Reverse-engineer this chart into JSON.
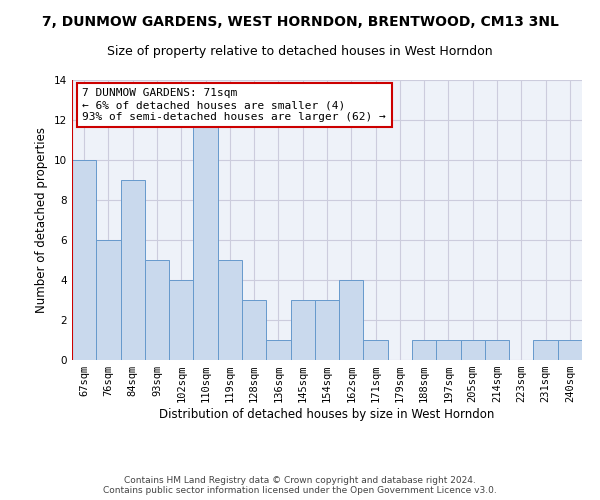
{
  "title": "7, DUNMOW GARDENS, WEST HORNDON, BRENTWOOD, CM13 3NL",
  "subtitle": "Size of property relative to detached houses in West Horndon",
  "xlabel": "Distribution of detached houses by size in West Horndon",
  "ylabel": "Number of detached properties",
  "categories": [
    "67sqm",
    "76sqm",
    "84sqm",
    "93sqm",
    "102sqm",
    "110sqm",
    "119sqm",
    "128sqm",
    "136sqm",
    "145sqm",
    "154sqm",
    "162sqm",
    "171sqm",
    "179sqm",
    "188sqm",
    "197sqm",
    "205sqm",
    "214sqm",
    "223sqm",
    "231sqm",
    "240sqm"
  ],
  "values": [
    10,
    6,
    9,
    5,
    4,
    12,
    5,
    3,
    1,
    3,
    3,
    4,
    1,
    0,
    1,
    1,
    1,
    1,
    0,
    1,
    1
  ],
  "bar_color": "#c9d9ed",
  "bar_edge_color": "#6699cc",
  "highlight_line_color": "#cc0000",
  "annotation_text": "7 DUNMOW GARDENS: 71sqm\n← 6% of detached houses are smaller (4)\n93% of semi-detached houses are larger (62) →",
  "annotation_box_color": "#ffffff",
  "annotation_box_edge_color": "#cc0000",
  "ylim": [
    0,
    14
  ],
  "yticks": [
    0,
    2,
    4,
    6,
    8,
    10,
    12,
    14
  ],
  "footer_text": "Contains HM Land Registry data © Crown copyright and database right 2024.\nContains public sector information licensed under the Open Government Licence v3.0.",
  "grid_color": "#ccccdd",
  "bg_color": "#eef2f9",
  "title_fontsize": 10,
  "subtitle_fontsize": 9,
  "axis_label_fontsize": 8.5,
  "tick_fontsize": 7.5,
  "annotation_fontsize": 8,
  "footer_fontsize": 6.5
}
